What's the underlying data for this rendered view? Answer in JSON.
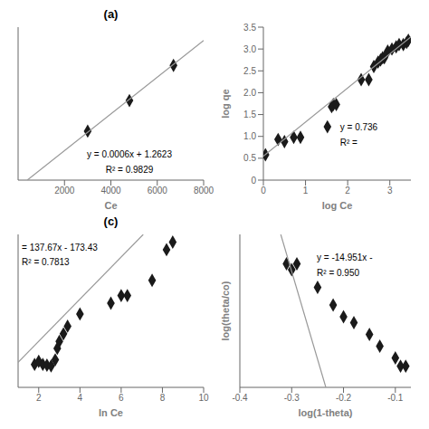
{
  "chart_data": [
    {
      "type": "scatter",
      "title": "(a)",
      "x_label": "Ce",
      "xlim": [
        0,
        8000
      ],
      "xticks": [
        2000,
        4000,
        6000,
        8000
      ],
      "ylim": [
        1.5,
        6.5
      ],
      "tick_labels": "x",
      "grid": false,
      "annotations": [
        "y = 0.0006x + 1.2623",
        "R² = 0.9829"
      ],
      "series": [
        {
          "type": "scatter",
          "marker": "diamond",
          "color": "#1a1a1a",
          "x": [
            3000,
            4800,
            6700
          ],
          "values": [
            3.1,
            4.1,
            5.25
          ]
        },
        {
          "type": "line",
          "color": "#999999",
          "x": [
            396.16667,
            8000
          ],
          "values": [
            1.5,
            6.0623
          ]
        }
      ]
    },
    {
      "type": "scatter",
      "x_label": "log Ce",
      "y_label": "log qe",
      "xlim": [
        0,
        3.5
      ],
      "xticks": [
        0,
        1,
        2,
        3
      ],
      "ylim": [
        0,
        3.5
      ],
      "yticks": [
        0,
        0.5,
        {
          "value": 1,
          "label": "1.0"
        },
        1.5,
        {
          "value": 2,
          "label": "2.0"
        },
        2.5,
        {
          "value": 3,
          "label": "3.0"
        },
        3.5
      ],
      "grid": false,
      "annotations": [
        "y = 0.736",
        "R² ="
      ],
      "series": [
        {
          "type": "scatter",
          "marker": "diamond",
          "color": "#1a1a1a",
          "x": [
            0.05,
            0.35,
            0.5,
            0.72,
            0.88,
            1.52,
            1.62,
            1.66,
            1.73,
            2.32,
            2.5,
            2.62,
            2.72,
            2.78,
            2.83,
            2.87,
            2.95,
            3.05,
            3.15,
            3.22,
            3.32,
            3.4,
            3.44
          ],
          "values": [
            0.58,
            0.93,
            0.88,
            0.98,
            0.98,
            1.22,
            1.68,
            1.73,
            1.73,
            2.3,
            2.3,
            2.6,
            2.7,
            2.75,
            2.8,
            2.8,
            2.95,
            3.0,
            3.05,
            3.1,
            3.1,
            3.15,
            3.2
          ]
        },
        {
          "type": "line",
          "color": "#999999",
          "x": [
            0,
            3.5
          ],
          "values": [
            0.55,
            3.28
          ]
        }
      ]
    },
    {
      "type": "scatter",
      "title": "(c)",
      "x_label": "ln Ce",
      "xlim": [
        1,
        10
      ],
      "xticks": [
        2,
        4,
        6,
        8,
        10
      ],
      "ylim": [
        -200,
        800
      ],
      "tick_labels": "x",
      "grid": false,
      "annotations": [
        "= 137.67x - 173.43",
        "R² = 0.7813"
      ],
      "series": [
        {
          "type": "scatter",
          "marker": "diamond",
          "color": "#1a1a1a",
          "x": [
            1.8,
            2.0,
            2.2,
            2.4,
            2.6,
            2.8,
            2.9,
            3.0,
            3.2,
            3.4,
            4.0,
            5.5,
            6.0,
            6.3,
            7.5,
            8.2,
            8.5
          ],
          "values": [
            -50,
            -30,
            -50,
            -55,
            -60,
            -20,
            55,
            100,
            150,
            200,
            280,
            350,
            400,
            400,
            500,
            700,
            750
          ]
        },
        {
          "type": "line",
          "color": "#999999",
          "x": [
            1,
            7.070749
          ],
          "values": [
            -35.76,
            800
          ]
        }
      ]
    },
    {
      "type": "scatter",
      "x_label": "log(1-theta)",
      "y_label": "log(theta/co)",
      "xlim": [
        -0.4,
        -0.07
      ],
      "xticks": [
        -0.4,
        -0.3,
        -0.2,
        -0.1
      ],
      "ylim": [
        -2.6,
        -1.3
      ],
      "tick_labels": "x",
      "grid": false,
      "annotations": [
        "y = -14.951x -",
        "R² = 0.950"
      ],
      "series": [
        {
          "type": "scatter",
          "marker": "diamond",
          "color": "#1a1a1a",
          "x": [
            -0.31,
            -0.3,
            -0.29,
            -0.25,
            -0.22,
            -0.2,
            -0.18,
            -0.15,
            -0.13,
            -0.1,
            -0.09,
            -0.08
          ],
          "values": [
            -1.55,
            -1.6,
            -1.55,
            -1.75,
            -1.9,
            -2.0,
            -2.05,
            -2.15,
            -2.25,
            -2.35,
            -2.42,
            -2.42
          ]
        },
        {
          "type": "line",
          "color": "#999999",
          "x": [
            -0.3210488,
            -0.2340981
          ],
          "values": [
            -1.3,
            -2.6
          ]
        }
      ]
    }
  ]
}
